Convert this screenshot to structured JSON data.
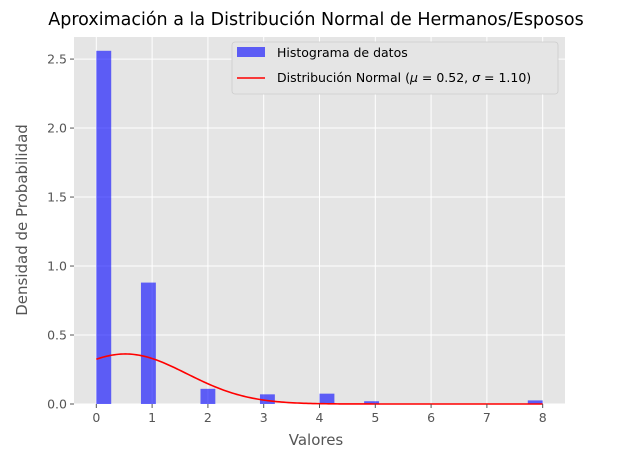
{
  "chart_data": {
    "type": "bar",
    "title": "Aproximación a la Distribución Normal de Hermanos/Esposos",
    "xlabel": "Valores",
    "ylabel": "Densidad de Probabilidad",
    "xlim": [
      -0.4,
      8.4
    ],
    "ylim": [
      0,
      2.66
    ],
    "xticks": [
      "0",
      "1",
      "2",
      "3",
      "4",
      "5",
      "6",
      "7",
      "8"
    ],
    "yticks": [
      "0.0",
      "0.5",
      "1.0",
      "1.5",
      "2.0",
      "2.5"
    ],
    "grid": true,
    "legend_position": "top-right",
    "series": [
      {
        "name": "Histograma de datos",
        "kind": "histogram",
        "color": "#0000ff",
        "bins": [
          {
            "x0": 0.0,
            "x1": 0.267,
            "value": 2.56
          },
          {
            "x0": 0.8,
            "x1": 1.067,
            "value": 0.88
          },
          {
            "x0": 1.867,
            "x1": 2.133,
            "value": 0.11
          },
          {
            "x0": 2.933,
            "x1": 3.2,
            "value": 0.07
          },
          {
            "x0": 4.0,
            "x1": 4.267,
            "value": 0.075
          },
          {
            "x0": 4.8,
            "x1": 5.067,
            "value": 0.02
          },
          {
            "x0": 7.733,
            "x1": 8.0,
            "value": 0.026
          }
        ]
      },
      {
        "name": "Distribución Normal ($\\mu = 0.52$, $\\sigma = 1.10$)",
        "kind": "line",
        "color": "#ff0000",
        "mu": 0.52,
        "sigma": 1.1,
        "x_range": [
          0,
          8
        ]
      }
    ]
  },
  "legend": {
    "hist_label": "Histograma de datos",
    "normal_label_prefix": "Distribución Normal (",
    "mu_symbol": "μ",
    "mu_text": " = 0.52, ",
    "sigma_symbol": "σ",
    "sigma_text": " = 1.10)"
  },
  "colors": {
    "plot_background": "#e5e5e5",
    "grid": "#ffffff",
    "histogram": "#0000ff",
    "normal_line": "#ff0000"
  }
}
